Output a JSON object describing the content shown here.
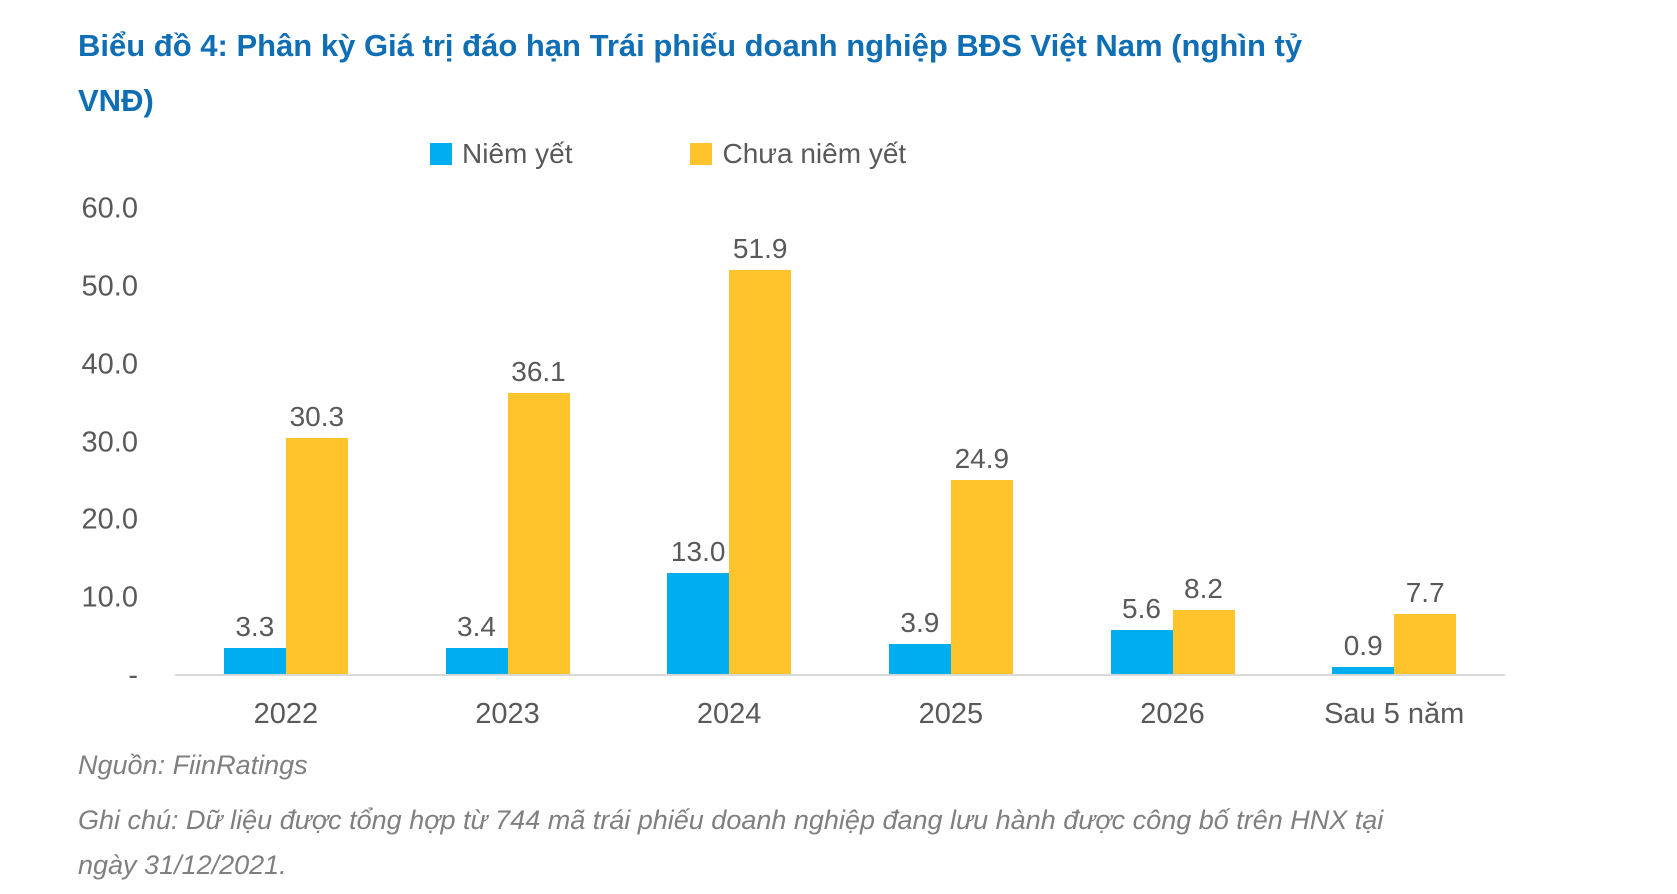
{
  "title": "Biểu đồ 4: Phân kỳ Giá trị đáo hạn Trái phiếu doanh nghiệp BĐS Việt Nam (nghìn tỷ VNĐ)",
  "legend": {
    "items": [
      {
        "label": "Niêm yết",
        "color": "#00AEEF"
      },
      {
        "label": "Chưa niêm yết",
        "color": "#FFC32C"
      }
    ]
  },
  "chart_data": {
    "type": "bar",
    "title": "Biểu đồ 4: Phân kỳ Giá trị đáo hạn Trái phiếu doanh nghiệp BĐS Việt Nam (nghìn tỷ VNĐ)",
    "categories": [
      "2022",
      "2023",
      "2024",
      "2025",
      "2026",
      "Sau 5 năm"
    ],
    "series": [
      {
        "name": "Niêm yết",
        "color": "#00AEEF",
        "values": [
          3.3,
          3.4,
          13.0,
          3.9,
          5.6,
          0.9
        ]
      },
      {
        "name": "Chưa niêm yết",
        "color": "#FFC32C",
        "values": [
          30.3,
          36.1,
          51.9,
          24.9,
          8.2,
          7.7
        ]
      }
    ],
    "xlabel": "",
    "ylabel": "",
    "ylim": [
      0,
      60
    ],
    "yticks": [
      {
        "label": "60.0",
        "value": 60
      },
      {
        "label": "50.0",
        "value": 50
      },
      {
        "label": "40.0",
        "value": 40
      },
      {
        "label": "30.0",
        "value": 30
      },
      {
        "label": "20.0",
        "value": 20
      },
      {
        "label": "10.0",
        "value": 10
      },
      {
        "label": "-",
        "value": 0
      }
    ],
    "grid": false,
    "legend_position": "top",
    "data_labels": true,
    "value_format": "one-decimal"
  },
  "footer": {
    "source": "Nguồn: FiinRatings",
    "note": "Ghi chú: Dữ liệu được tổng hợp từ 744 mã trái phiếu doanh nghiệp đang lưu hành được công bố trên HNX tại ngày 31/12/2021."
  },
  "colors": {
    "title": "#0F6EB4",
    "axis_text": "#595959",
    "data_label": "#595959",
    "footer_text": "#7F7F7F",
    "axis_line": "#D9D9D9",
    "background": "#FFFFFF",
    "series_blue": "#00AEEF",
    "series_yellow": "#FFC32C"
  }
}
